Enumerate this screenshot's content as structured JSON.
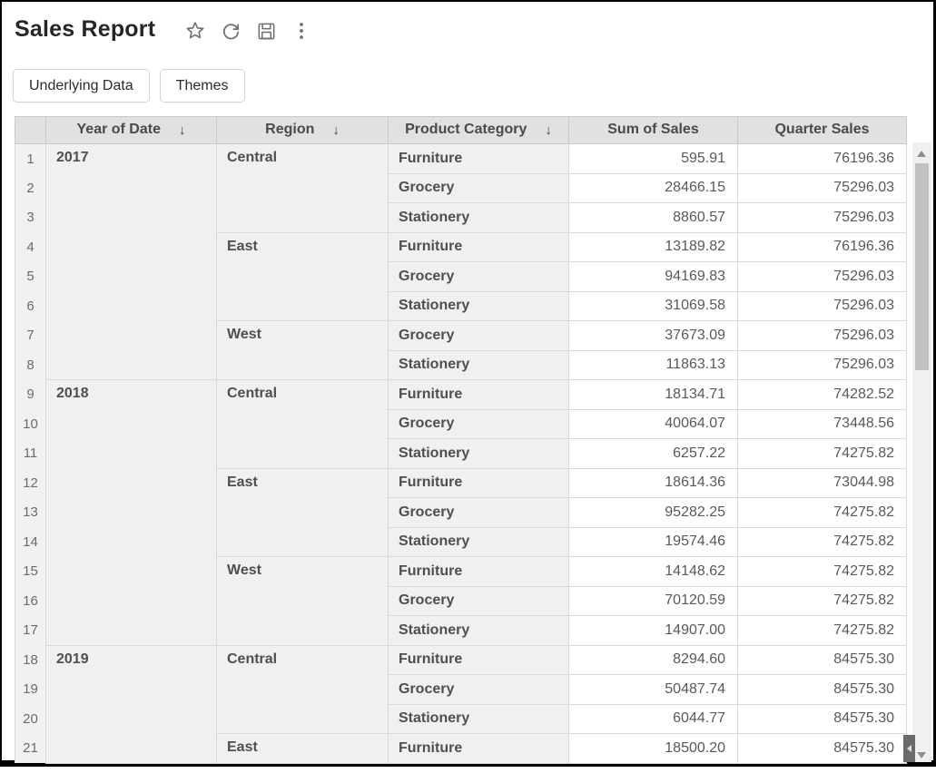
{
  "header": {
    "title": "Sales Report",
    "icons": [
      {
        "name": "star-icon"
      },
      {
        "name": "refresh-icon"
      },
      {
        "name": "save-icon"
      },
      {
        "name": "kebab-menu-icon"
      }
    ]
  },
  "toolbar": {
    "underlying_data_label": "Underlying Data",
    "themes_label": "Themes"
  },
  "table": {
    "sort_icon": "↓",
    "columns": [
      {
        "label": "Year of Date",
        "sortable": true
      },
      {
        "label": "Region",
        "sortable": true
      },
      {
        "label": "Product Category",
        "sortable": true
      },
      {
        "label": "Sum of Sales",
        "sortable": false
      },
      {
        "label": "Quarter Sales",
        "sortable": false
      }
    ],
    "rows": [
      {
        "n": "1",
        "year": "2017",
        "year_span": 8,
        "region": "Central",
        "region_span": 3,
        "category": "Furniture",
        "sum": "595.91",
        "quarter": "76196.36"
      },
      {
        "n": "2",
        "category": "Grocery",
        "sum": "28466.15",
        "quarter": "75296.03"
      },
      {
        "n": "3",
        "category": "Stationery",
        "sum": "8860.57",
        "quarter": "75296.03"
      },
      {
        "n": "4",
        "region": "East",
        "region_span": 3,
        "category": "Furniture",
        "sum": "13189.82",
        "quarter": "76196.36"
      },
      {
        "n": "5",
        "category": "Grocery",
        "sum": "94169.83",
        "quarter": "75296.03"
      },
      {
        "n": "6",
        "category": "Stationery",
        "sum": "31069.58",
        "quarter": "75296.03"
      },
      {
        "n": "7",
        "region": "West",
        "region_span": 2,
        "category": "Grocery",
        "sum": "37673.09",
        "quarter": "75296.03"
      },
      {
        "n": "8",
        "category": "Stationery",
        "sum": "11863.13",
        "quarter": "75296.03"
      },
      {
        "n": "9",
        "year": "2018",
        "year_span": 9,
        "region": "Central",
        "region_span": 3,
        "category": "Furniture",
        "sum": "18134.71",
        "quarter": "74282.52"
      },
      {
        "n": "10",
        "category": "Grocery",
        "sum": "40064.07",
        "quarter": "73448.56"
      },
      {
        "n": "11",
        "category": "Stationery",
        "sum": "6257.22",
        "quarter": "74275.82"
      },
      {
        "n": "12",
        "region": "East",
        "region_span": 3,
        "category": "Furniture",
        "sum": "18614.36",
        "quarter": "73044.98"
      },
      {
        "n": "13",
        "category": "Grocery",
        "sum": "95282.25",
        "quarter": "74275.82"
      },
      {
        "n": "14",
        "category": "Stationery",
        "sum": "19574.46",
        "quarter": "74275.82"
      },
      {
        "n": "15",
        "region": "West",
        "region_span": 3,
        "category": "Furniture",
        "sum": "14148.62",
        "quarter": "74275.82"
      },
      {
        "n": "16",
        "category": "Grocery",
        "sum": "70120.59",
        "quarter": "74275.82"
      },
      {
        "n": "17",
        "category": "Stationery",
        "sum": "14907.00",
        "quarter": "74275.82"
      },
      {
        "n": "18",
        "year": "2019",
        "year_span": 4,
        "region": "Central",
        "region_span": 3,
        "category": "Furniture",
        "sum": "8294.60",
        "quarter": "84575.30"
      },
      {
        "n": "19",
        "category": "Grocery",
        "sum": "50487.74",
        "quarter": "84575.30"
      },
      {
        "n": "20",
        "category": "Stationery",
        "sum": "6044.77",
        "quarter": "84575.30"
      },
      {
        "n": "21",
        "region": "East",
        "region_span": 1,
        "category": "Furniture",
        "sum": "18500.20",
        "quarter": "84575.30"
      }
    ]
  },
  "colors": {
    "header_bg": "#e1e1e1",
    "dimension_cell_bg": "#f0f0f0",
    "grid_border": "#d9d9d9",
    "text": "#545454",
    "scroll_thumb": "#c1c1c1",
    "scroll_dark_button": "#6b6b6b",
    "frame_border": "#000000"
  }
}
